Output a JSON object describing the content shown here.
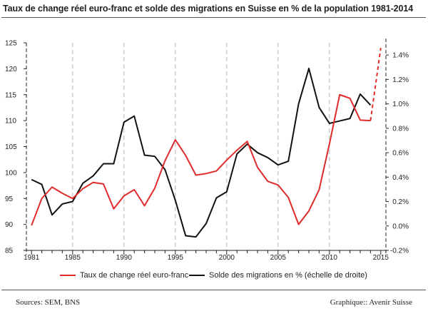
{
  "chart_data": {
    "type": "line",
    "title": "Taux de change réel euro-franc et solde des migrations en Suisse en % de la population 1981-2014",
    "x": [
      1981,
      1982,
      1983,
      1984,
      1985,
      1986,
      1987,
      1988,
      1989,
      1990,
      1991,
      1992,
      1993,
      1994,
      1995,
      1996,
      1997,
      1998,
      1999,
      2000,
      2001,
      2002,
      2003,
      2004,
      2005,
      2006,
      2007,
      2008,
      2009,
      2010,
      2011,
      2012,
      2013,
      2014
    ],
    "xlim": [
      1980.5,
      2015.5
    ],
    "x_tick_labels": [
      "1981",
      "1985",
      "1990",
      "1995",
      "2000",
      "2005",
      "2010",
      "2015"
    ],
    "y_left": {
      "lim": [
        85,
        125
      ],
      "tick_labels": [
        "85",
        "90",
        "95",
        "100",
        "105",
        "110",
        "115",
        "120",
        "125"
      ]
    },
    "y_right": {
      "lim": [
        -0.2,
        1.5
      ],
      "tick_labels": [
        "-0.2%",
        "0.0%",
        "0.2%",
        "0.4%",
        "0.6%",
        "0.8%",
        "1.0%",
        "1.2%",
        "1.4%"
      ]
    },
    "grid": "vertical dashed",
    "legend_position": "bottom",
    "series": [
      {
        "name": "Taux de change réel euro-franc",
        "axis": "left",
        "color": "#e02b2b",
        "values": [
          89.8,
          95.0,
          97.2,
          96.0,
          95.0,
          96.9,
          98.1,
          97.8,
          93.0,
          95.5,
          96.7,
          93.6,
          97.0,
          102.3,
          106.3,
          103.3,
          99.5,
          99.8,
          100.3,
          102.4,
          104.3,
          106.0,
          101.0,
          98.3,
          97.6,
          95.2,
          90.0,
          92.6,
          96.7,
          105.5,
          115.0,
          114.3,
          110.1,
          110.0
        ],
        "projection": {
          "x": [
            2014,
            2015
          ],
          "values": [
            110.0,
            124.0
          ]
        }
      },
      {
        "name": "Solde des migrations en % (échelle de droite)",
        "axis": "right",
        "color": "#111111",
        "values": [
          0.38,
          0.34,
          0.09,
          0.18,
          0.2,
          0.35,
          0.41,
          0.51,
          0.51,
          0.85,
          0.9,
          0.58,
          0.57,
          0.46,
          0.21,
          -0.08,
          -0.09,
          0.02,
          0.23,
          0.28,
          0.59,
          0.67,
          0.6,
          0.56,
          0.5,
          0.53,
          1.0,
          1.29,
          0.97,
          0.84,
          0.86,
          0.88,
          1.08,
          0.99
        ]
      }
    ]
  },
  "footer": {
    "source": "Sources: SEM, BNS",
    "credit": "Graphique:: Avenir Suisse"
  }
}
